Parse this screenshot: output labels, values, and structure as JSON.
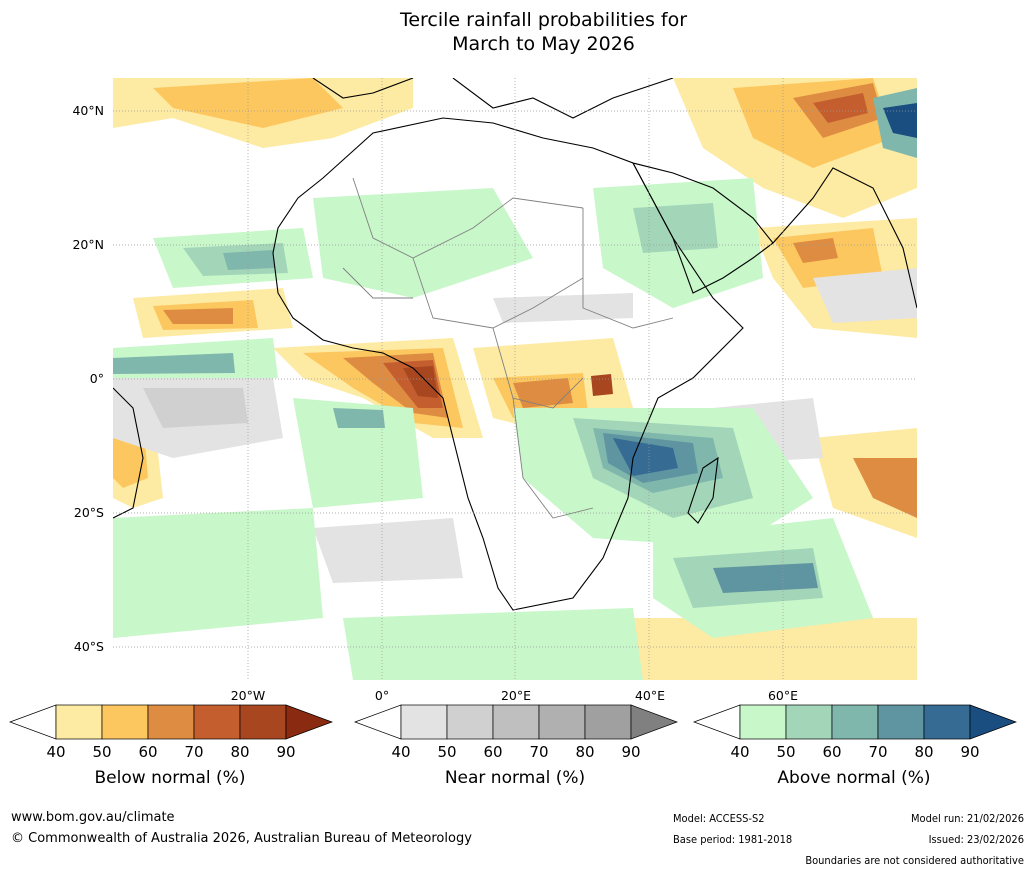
{
  "title": {
    "line1": "Tercile rainfall probabilities for",
    "line2": "March to May 2026"
  },
  "map": {
    "lat_labels": [
      "40°N",
      "20°N",
      "0°",
      "20°S",
      "40°S"
    ],
    "lon_labels": [
      "20°W",
      "0°",
      "20°E",
      "40°E",
      "60°E"
    ],
    "colors": {
      "below": [
        "#fdeaa3",
        "#fdc75f",
        "#de8c42",
        "#c45e2f",
        "#a8461f",
        "#8a2a10"
      ],
      "near": [
        "#e3e3e3",
        "#d0d0d0",
        "#bfbfbf",
        "#b0b0b0",
        "#a0a0a0",
        "#808080"
      ],
      "above": [
        "#c8f7ca",
        "#a3d6b9",
        "#80b7ad",
        "#5f95a0",
        "#366b94",
        "#1a4d80"
      ],
      "land_outline": "#000000",
      "border": "#808080",
      "grid": "#999999"
    }
  },
  "colorbars": [
    {
      "name": "Below normal (%)",
      "ticks": [
        "40",
        "50",
        "60",
        "70",
        "80",
        "90"
      ]
    },
    {
      "name": "Near normal (%)",
      "ticks": [
        "40",
        "50",
        "60",
        "70",
        "80",
        "90"
      ]
    },
    {
      "name": "Above normal (%)",
      "ticks": [
        "40",
        "50",
        "60",
        "70",
        "80",
        "90"
      ]
    }
  ],
  "footer": {
    "website": "www.bom.gov.au/climate",
    "copyright": "© Commonwealth of Australia 2026, Australian Bureau of Meteorology",
    "model": "Model: ACCESS-S2",
    "base_period": "Base period: 1981-2018",
    "model_run": "Model run: 21/02/2026",
    "issued": "Issued: 23/02/2026",
    "disclaimer": "Boundaries are not considered authoritative"
  }
}
